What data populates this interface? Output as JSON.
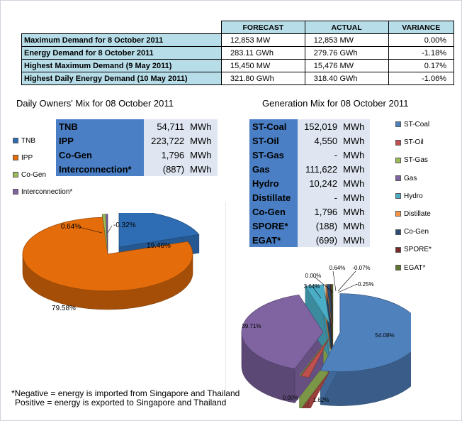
{
  "demand": {
    "headers": [
      "",
      "FORECAST",
      "ACTUAL",
      "VARIANCE"
    ],
    "rows": [
      {
        "label": "Maximum Demand for 8 October 2011",
        "forecast": "12,853  MW",
        "actual": "12,853  MW",
        "variance": "0.00%"
      },
      {
        "label": "Energy Demand for 8 October 2011",
        "forecast": "283.11  GWh",
        "actual": "279.76  GWh",
        "variance": "-1.18%"
      },
      {
        "label": "Highest Maximum Demand (9 May 2011)",
        "forecast": "15,450  MW",
        "actual": "15,476  MW",
        "variance": "0.17%"
      },
      {
        "label": "Highest Daily Energy Demand (10 May 2011)",
        "forecast": "321.80  GWh",
        "actual": "318.40  GWh",
        "variance": "-1.06%"
      }
    ]
  },
  "owners": {
    "title": "Daily Owners' Mix for 08 October 2011",
    "rows": [
      {
        "name": "TNB",
        "value": "54,711",
        "unit": "MWh"
      },
      {
        "name": "IPP",
        "value": "223,722",
        "unit": "MWh"
      },
      {
        "name": "Co-Gen",
        "value": "1,796",
        "unit": "MWh"
      },
      {
        "name": "Interconnection*",
        "value": "(887)",
        "unit": "MWh"
      }
    ]
  },
  "generation": {
    "title": "Generation Mix for 08 October 2011",
    "rows": [
      {
        "name": "ST-Coal",
        "value": "152,019",
        "unit": "MWh"
      },
      {
        "name": "ST-Oil",
        "value": "4,550",
        "unit": "MWh"
      },
      {
        "name": "ST-Gas",
        "value": "-",
        "unit": "MWh"
      },
      {
        "name": "Gas",
        "value": "111,622",
        "unit": "MWh"
      },
      {
        "name": "Hydro",
        "value": "10,242",
        "unit": "MWh"
      },
      {
        "name": "Distillate",
        "value": "-",
        "unit": "MWh"
      },
      {
        "name": "Co-Gen",
        "value": "1,796",
        "unit": "MWh"
      },
      {
        "name": "SPORE*",
        "value": "(188)",
        "unit": "MWh"
      },
      {
        "name": "EGAT*",
        "value": "(699)",
        "unit": "MWh"
      }
    ]
  },
  "note": {
    "line1": "*Negative = energy is imported from Singapore and Thailand",
    "line2": "Positive = energy is exported to Singapore and Thailand"
  },
  "chart_data": [
    {
      "type": "pie",
      "title": "Daily Owners' Mix for 08 October 2011",
      "legend_position": "left",
      "slices": [
        {
          "name": "TNB",
          "value": 19.46,
          "label": "19.46%",
          "color": "#2e6db4"
        },
        {
          "name": "IPP",
          "value": 79.58,
          "label": "79.58%",
          "color": "#e46c0a"
        },
        {
          "name": "Co-Gen",
          "value": 0.64,
          "label": "0.64%",
          "color": "#9bbb59"
        },
        {
          "name": "Interconnection*",
          "value": -0.32,
          "label": "-0.32%",
          "color": "#8064a2"
        }
      ]
    },
    {
      "type": "pie",
      "title": "Generation Mix for 08 October 2011",
      "legend_position": "right",
      "slices": [
        {
          "name": "ST-Coal",
          "value": 54.08,
          "label": "54.08%",
          "color": "#4f81bd"
        },
        {
          "name": "ST-Oil",
          "value": 1.62,
          "label": "1.62%",
          "color": "#c0504d"
        },
        {
          "name": "ST-Gas",
          "value": 0.0,
          "label": "0.00%",
          "color": "#9bbb59"
        },
        {
          "name": "Gas",
          "value": 39.71,
          "label": "39.71%",
          "color": "#8064a2"
        },
        {
          "name": "Hydro",
          "value": 3.64,
          "label": "3.64%",
          "color": "#4bacc6"
        },
        {
          "name": "Distillate",
          "value": 0.0,
          "label": "0.00%",
          "color": "#f79646"
        },
        {
          "name": "Co-Gen",
          "value": 0.64,
          "label": "0.64%",
          "color": "#2c4d75"
        },
        {
          "name": "SPORE*",
          "value": -0.07,
          "label": "-0.07%",
          "color": "#772c2a"
        },
        {
          "name": "EGAT*",
          "value": -0.25,
          "label": "-0.25%",
          "color": "#5f7530"
        }
      ]
    }
  ]
}
